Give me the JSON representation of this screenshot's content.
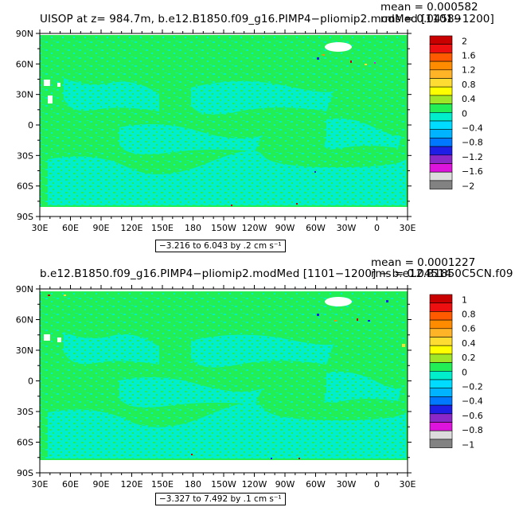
{
  "panels": [
    {
      "title": "UISOP at z= 984.7m, b.e12.B1850.f09_g16.PIMP4−pliomip2.modMed [1101−1200]",
      "mean": "mean = 0.000582",
      "rms": "rms = 0.04589",
      "range_label": "−3.216 to 6.043 by .2 cm s⁻¹",
      "lat_labels": [
        "90N",
        "60N",
        "30N",
        "0",
        "30S",
        "60S",
        "90S"
      ],
      "lon_labels": [
        "30E",
        "60E",
        "90E",
        "120E",
        "150E",
        "180",
        "150W",
        "120W",
        "90W",
        "60W",
        "30W",
        "0",
        "30E"
      ],
      "colorbar_labels": [
        "2",
        "1.6",
        "1.2",
        "0.8",
        "0.4",
        "0",
        "−0.4",
        "−0.8",
        "−1.2",
        "−1.6",
        "−2"
      ]
    },
    {
      "title": "b.e12.B1850.f09_g16.PIMP4−pliomip2.modMed [1101−1200] − b.e12.B1850C5CN.f09",
      "mean": "mean = 0.0001227",
      "rms": "rms = 0.04514",
      "range_label": "−3.327 to 7.492 by .1 cm s⁻¹",
      "lat_labels": [
        "90N",
        "60N",
        "30N",
        "0",
        "30S",
        "60S",
        "90S"
      ],
      "lon_labels": [
        "30E",
        "60E",
        "90E",
        "120E",
        "150E",
        "180",
        "150W",
        "120W",
        "90W",
        "60W",
        "30W",
        "0",
        "30E"
      ],
      "colorbar_labels": [
        "1",
        "0.8",
        "0.6",
        "0.4",
        "0.2",
        "0",
        "−0.2",
        "−0.4",
        "−0.6",
        "−0.8",
        "−1"
      ]
    }
  ],
  "colors": {
    "field": "#22ee55",
    "field_alt": "#00eecc",
    "land_void": "#ffffff",
    "colorbar": [
      "#c80000",
      "#ee1010",
      "#ff5a00",
      "#ff8c00",
      "#ffb428",
      "#ffdc32",
      "#ffff00",
      "#a0e628",
      "#22ee55",
      "#00eecc",
      "#00dcff",
      "#00b4ff",
      "#0078ff",
      "#1e1ee6",
      "#8c28c8",
      "#dc14dc",
      "#dcdcdc",
      "#828282"
    ]
  }
}
